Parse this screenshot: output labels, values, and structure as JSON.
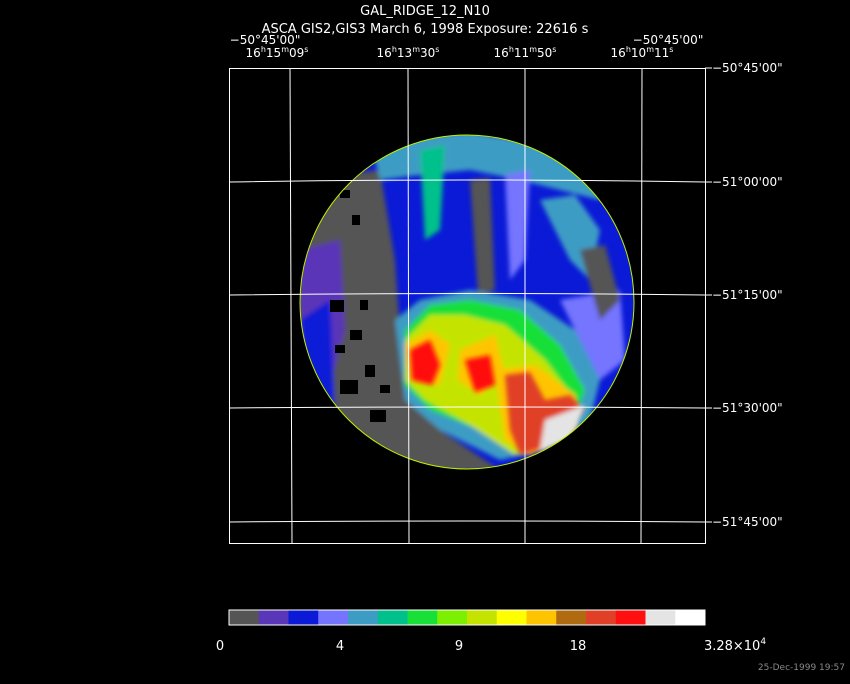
{
  "header": {
    "title": "GAL_RIDGE_12_N10",
    "subtitle": "ASCA GIS2,GIS3 March 6, 1998 Exposure: 22616 s"
  },
  "axes": {
    "top_dec_labels": [
      "−50°45'00\"",
      "−50°45'00\""
    ],
    "ra_labels": [
      "16h15m09s",
      "16h13m30s",
      "16h11m50s",
      "16h10m11s"
    ],
    "dec_labels": [
      "−50°45'00\"",
      "−51°00'00\"",
      "−51°15'00\"",
      "−51°30'00\"",
      "−51°45'00\""
    ]
  },
  "colorbar": {
    "colors": [
      "#555555",
      "#5a36b8",
      "#0a1ad6",
      "#7474ff",
      "#3c9cc4",
      "#00c08c",
      "#18e038",
      "#7cf000",
      "#c4e400",
      "#ffff00",
      "#ffc400",
      "#b06a10",
      "#e04028",
      "#ff1010",
      "#e4e4e4",
      "#ffffff"
    ],
    "labels": [
      "0",
      "4",
      "9",
      "18",
      {
        "base": "3.28×10",
        "exponent": "4"
      }
    ]
  },
  "footer": {
    "timestamp": "25-Dec-1999 19:57"
  }
}
